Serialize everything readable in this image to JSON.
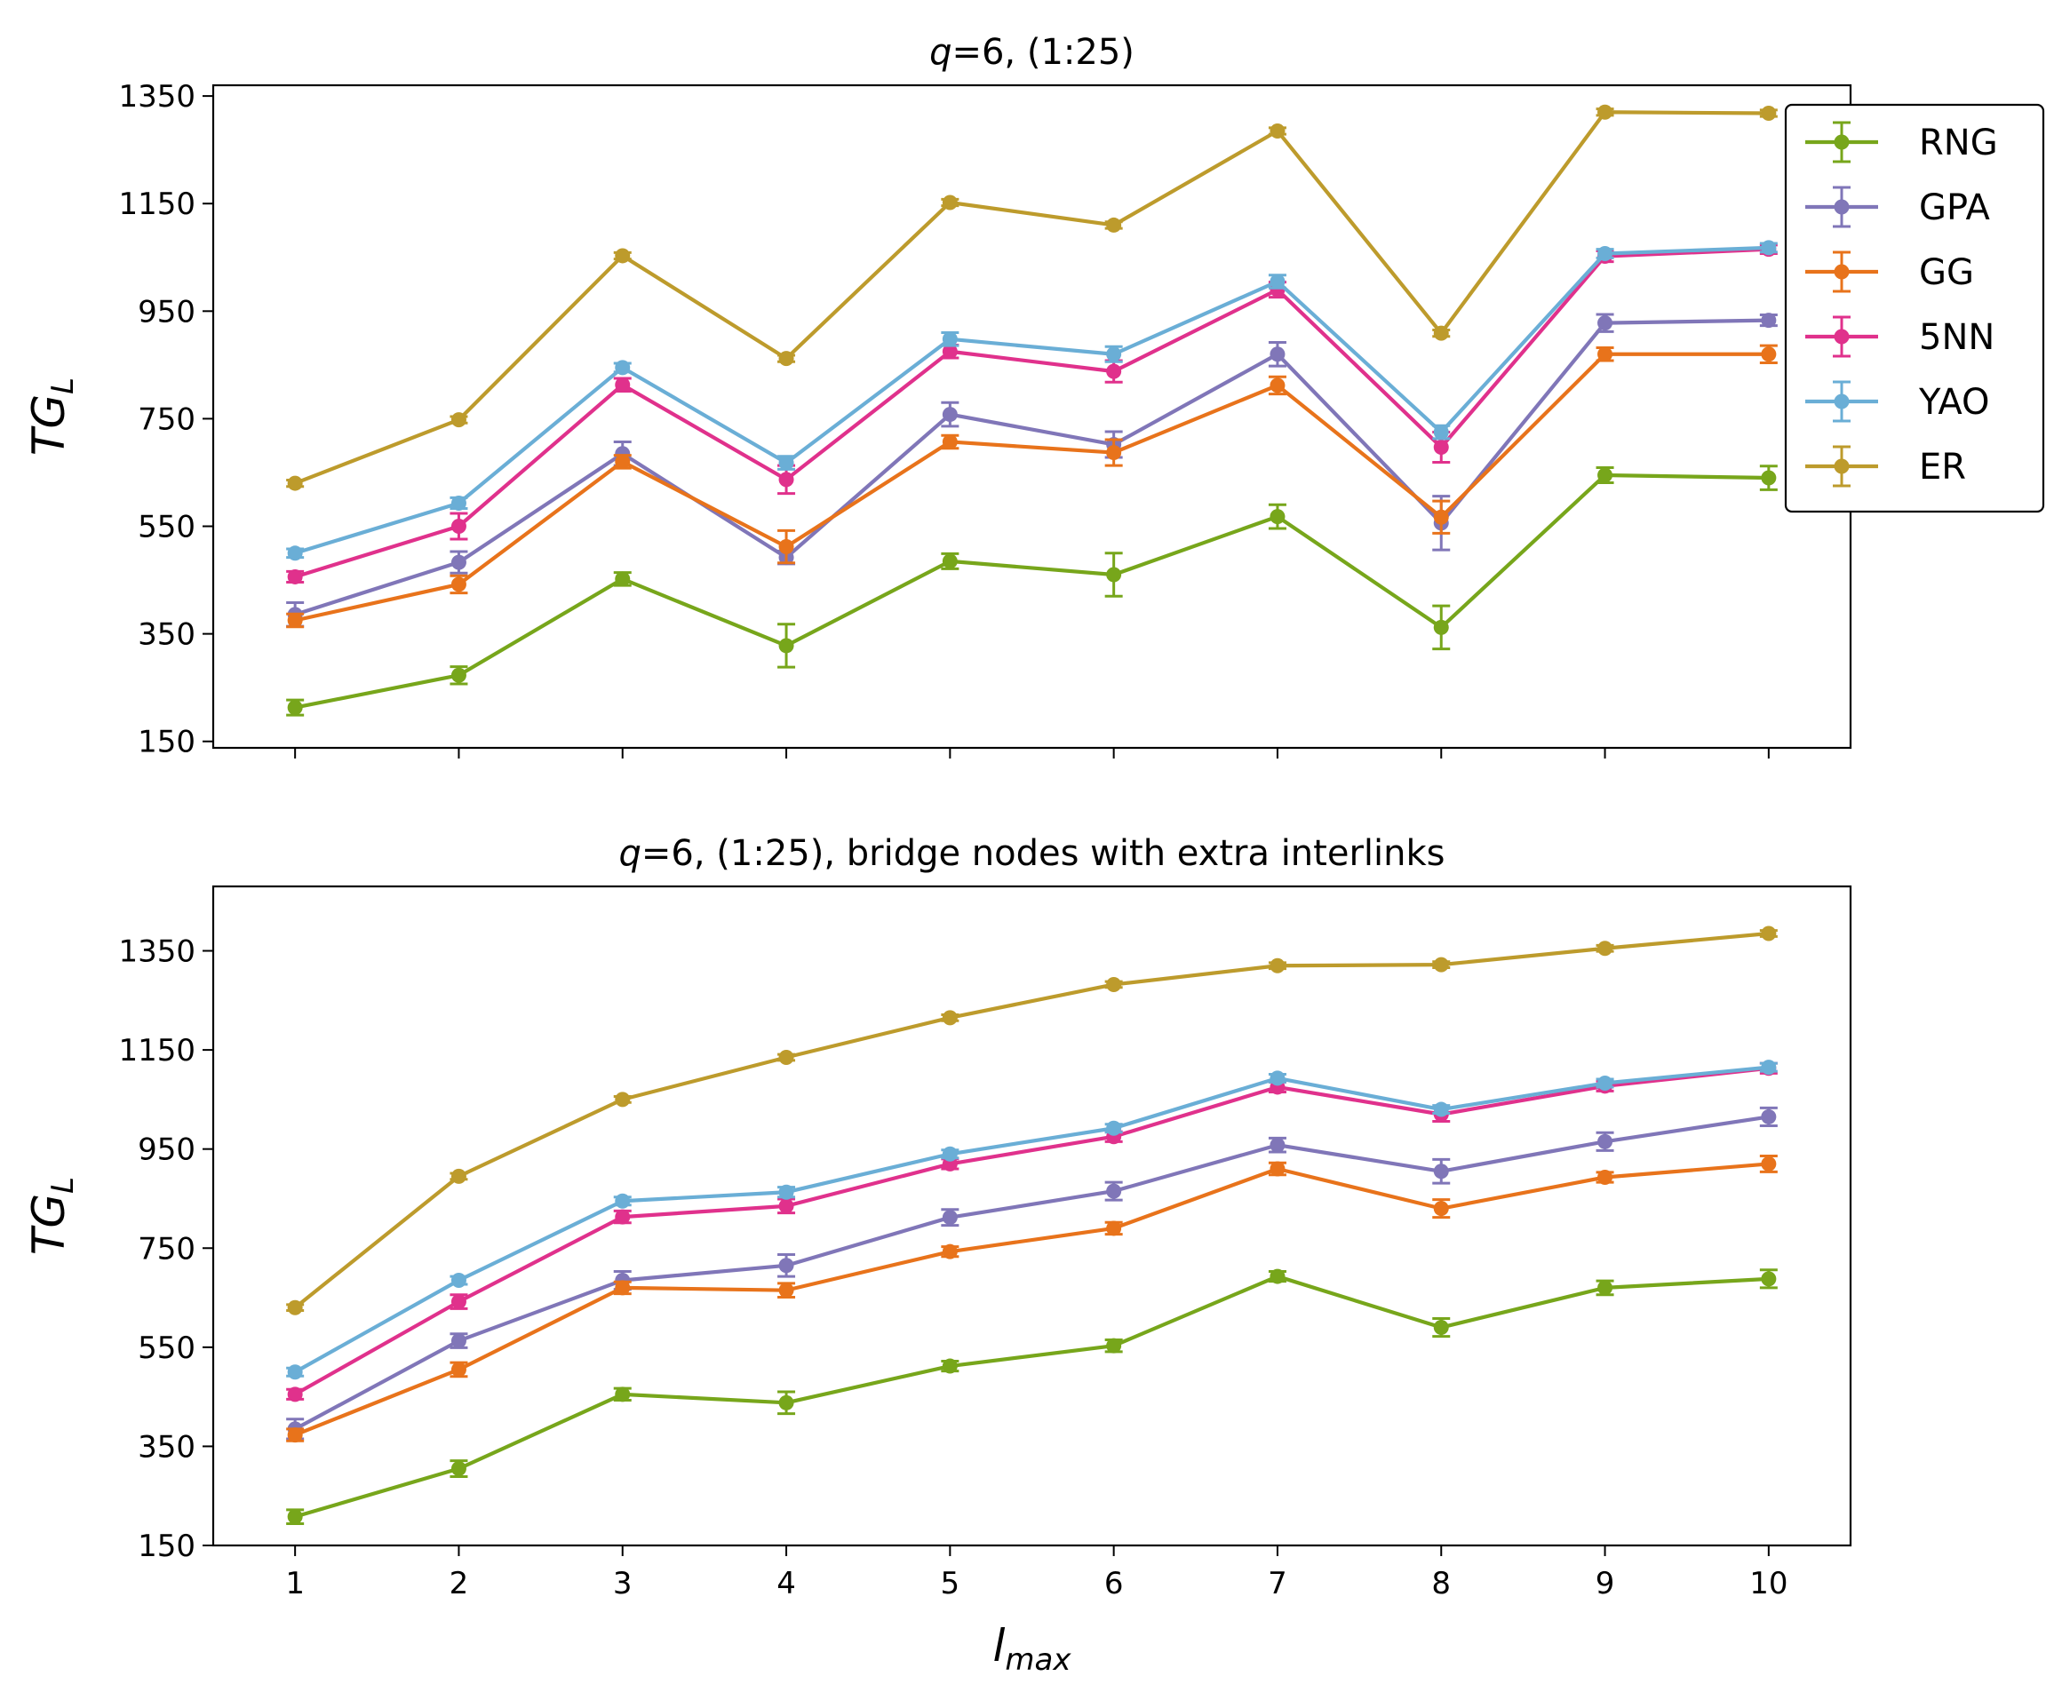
{
  "chart_data": [
    {
      "type": "line",
      "title_prefix": "q",
      "title_suffix": "=6, (1:25)",
      "ylabel": "TG",
      "ylabel_sub": "L",
      "xlabel": "",
      "xlabel_sub": "",
      "ylim": [
        138,
        1370
      ],
      "xlim": [
        0.5,
        10.5
      ],
      "yticks": [
        150,
        350,
        550,
        750,
        950,
        1150,
        1350
      ],
      "x": [
        1,
        2,
        3,
        4,
        5,
        6,
        7,
        8,
        9,
        10
      ],
      "xticklabels": [
        "",
        "",
        "",
        "",
        "",
        "",
        "",
        "",
        "",
        ""
      ],
      "grid": false,
      "legend": "top-right",
      "series": [
        {
          "name": "RNG",
          "color": "#77a61b",
          "values": [
            213,
            273,
            452,
            328,
            485,
            460,
            568,
            362,
            645,
            640
          ],
          "errors": [
            14,
            16,
            12,
            40,
            14,
            40,
            22,
            40,
            14,
            22
          ]
        },
        {
          "name": "GPA",
          "color": "#8076b8",
          "values": [
            386,
            483,
            685,
            492,
            758,
            702,
            870,
            556,
            928,
            933
          ],
          "errors": [
            22,
            20,
            22,
            12,
            22,
            24,
            22,
            50,
            16,
            10
          ]
        },
        {
          "name": "GG",
          "color": "#e8731b",
          "values": [
            375,
            442,
            670,
            512,
            707,
            687,
            812,
            567,
            870,
            870
          ],
          "errors": [
            12,
            16,
            12,
            30,
            12,
            24,
            16,
            30,
            12,
            16
          ]
        },
        {
          "name": "5NN",
          "color": "#e0318c",
          "values": [
            456,
            550,
            813,
            637,
            875,
            838,
            990,
            697,
            1052,
            1065
          ],
          "errors": [
            10,
            24,
            12,
            26,
            12,
            20,
            14,
            28,
            10,
            8
          ]
        },
        {
          "name": "YAO",
          "color": "#6aaed6",
          "values": [
            500,
            593,
            845,
            668,
            898,
            870,
            1005,
            725,
            1057,
            1068
          ],
          "errors": [
            8,
            10,
            8,
            12,
            12,
            14,
            12,
            12,
            8,
            8
          ]
        },
        {
          "name": "ER",
          "color": "#bd9b2c",
          "values": [
            630,
            748,
            1053,
            862,
            1152,
            1110,
            1285,
            909,
            1320,
            1318
          ],
          "errors": [
            6,
            6,
            6,
            6,
            6,
            6,
            6,
            6,
            6,
            6
          ]
        }
      ]
    },
    {
      "type": "line",
      "title_prefix": "q",
      "title_suffix": "=6, (1:25), bridge nodes with extra interlinks",
      "ylabel": "TG",
      "ylabel_sub": "L",
      "xlabel": "l",
      "xlabel_sub": "max",
      "ylim": [
        150,
        1480
      ],
      "xlim": [
        0.5,
        10.5
      ],
      "yticks": [
        150,
        350,
        550,
        750,
        950,
        1150,
        1350
      ],
      "x": [
        1,
        2,
        3,
        4,
        5,
        6,
        7,
        8,
        9,
        10
      ],
      "xticklabels": [
        "1",
        "2",
        "3",
        "4",
        "5",
        "6",
        "7",
        "8",
        "9",
        "10"
      ],
      "grid": false,
      "legend": "",
      "series": [
        {
          "name": "RNG",
          "color": "#77a61b",
          "values": [
            208,
            305,
            455,
            438,
            512,
            553,
            693,
            590,
            670,
            688
          ],
          "errors": [
            14,
            16,
            12,
            22,
            10,
            12,
            10,
            18,
            14,
            18
          ]
        },
        {
          "name": "GPA",
          "color": "#8076b8",
          "values": [
            385,
            563,
            685,
            715,
            812,
            865,
            958,
            905,
            965,
            1015
          ],
          "errors": [
            20,
            14,
            18,
            22,
            16,
            18,
            14,
            24,
            18,
            18
          ]
        },
        {
          "name": "GG",
          "color": "#e8731b",
          "values": [
            373,
            505,
            670,
            665,
            743,
            790,
            910,
            830,
            893,
            920
          ],
          "errors": [
            12,
            14,
            12,
            14,
            10,
            12,
            12,
            18,
            10,
            16
          ]
        },
        {
          "name": "5NN",
          "color": "#e0318c",
          "values": [
            455,
            642,
            813,
            835,
            920,
            975,
            1075,
            1020,
            1077,
            1113
          ],
          "errors": [
            10,
            14,
            12,
            14,
            10,
            10,
            10,
            14,
            10,
            10
          ]
        },
        {
          "name": "YAO",
          "color": "#6aaed6",
          "values": [
            500,
            685,
            845,
            863,
            940,
            992,
            1093,
            1030,
            1083,
            1115
          ],
          "errors": [
            8,
            8,
            8,
            10,
            8,
            8,
            8,
            8,
            8,
            8
          ]
        },
        {
          "name": "ER",
          "color": "#bd9b2c",
          "values": [
            630,
            895,
            1050,
            1135,
            1215,
            1282,
            1320,
            1322,
            1355,
            1385
          ],
          "errors": [
            6,
            6,
            6,
            6,
            6,
            6,
            6,
            6,
            6,
            6
          ]
        }
      ]
    }
  ]
}
